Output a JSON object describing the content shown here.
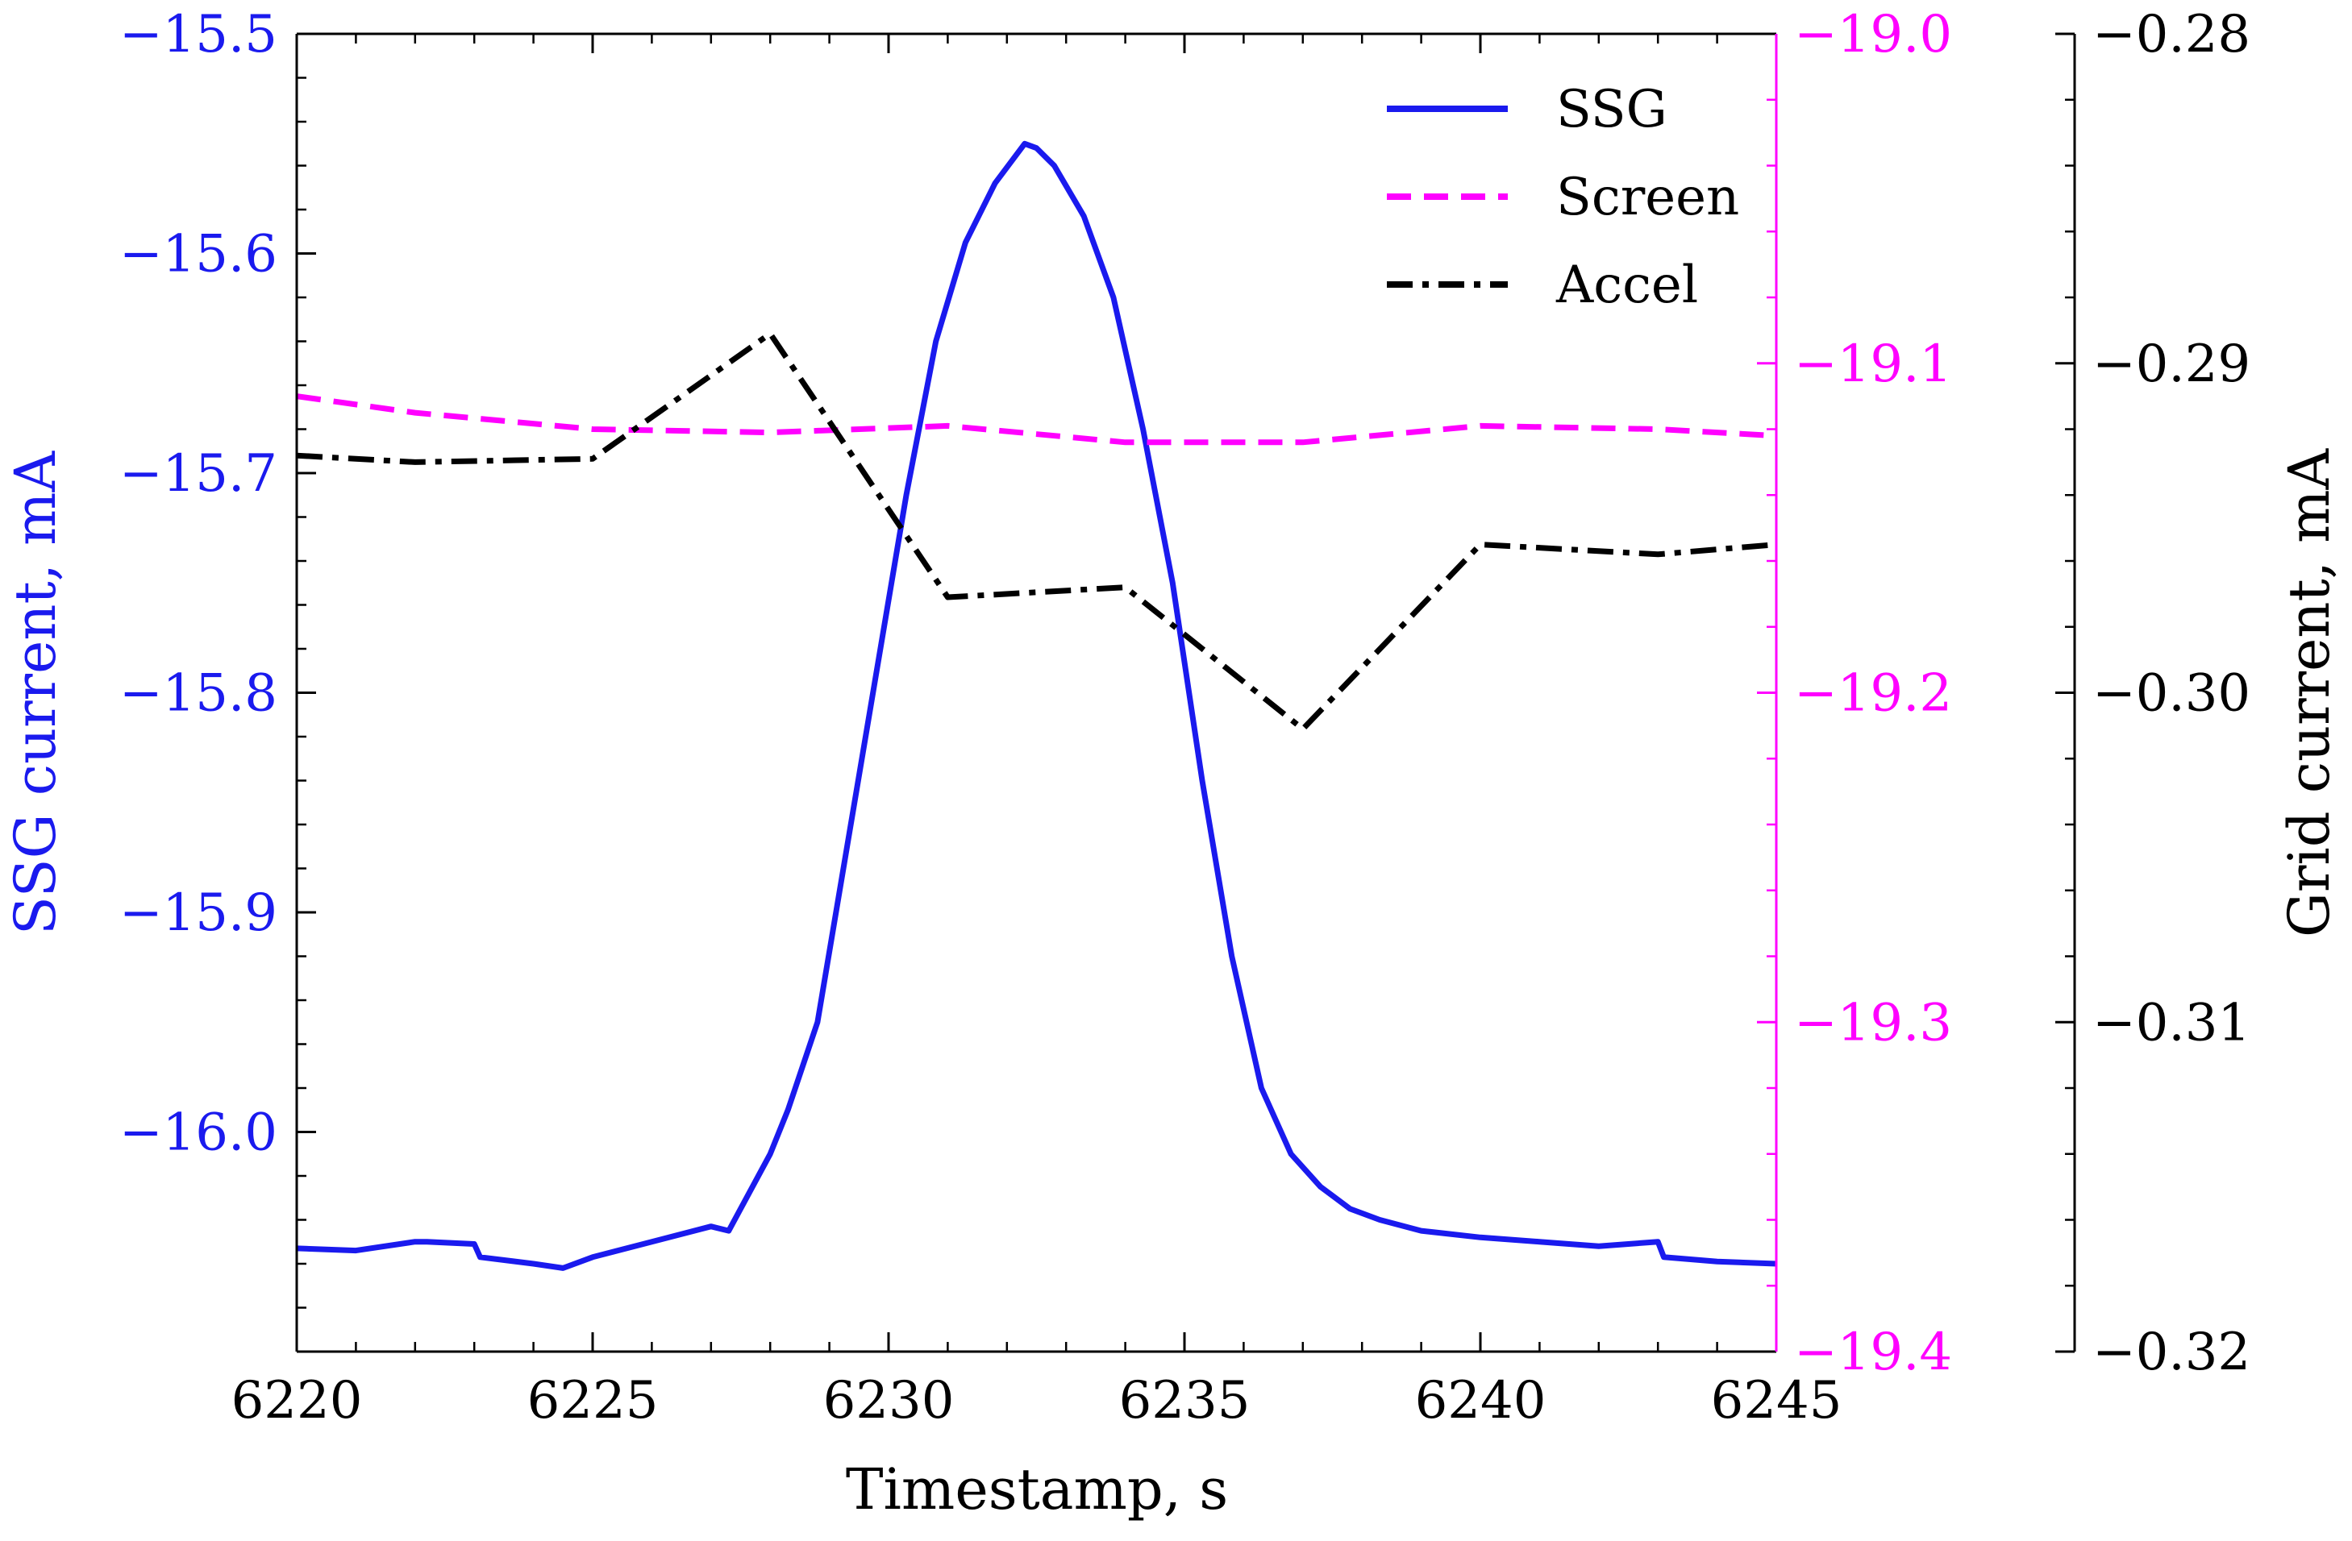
{
  "chart_data": {
    "type": "line",
    "xlabel": "Timestamp, s",
    "xlim": [
      6220,
      6245
    ],
    "xticks": [
      6220,
      6225,
      6230,
      6235,
      6240,
      6245
    ],
    "xtick_labels": [
      "6220",
      "6225",
      "6230",
      "6235",
      "6240",
      "6245"
    ],
    "axes": {
      "left": {
        "label": "SSG current, mA",
        "color": "#1a1aee",
        "ylim": [
          -16.1,
          -15.5
        ],
        "ticks": [
          -15.5,
          -15.6,
          -15.7,
          -15.8,
          -15.9,
          -16.0
        ],
        "tick_labels": [
          "−15.5",
          "−15.6",
          "−15.7",
          "−15.8",
          "−15.9",
          "−16.0"
        ]
      },
      "right_screen": {
        "label": "",
        "color": "#ff00ff",
        "ylim": [
          -19.4,
          -19.0
        ],
        "ticks": [
          -19.0,
          -19.1,
          -19.2,
          -19.3,
          -19.4
        ],
        "tick_labels": [
          "−19.0",
          "−19.1",
          "−19.2",
          "−19.3",
          "−19.4"
        ]
      },
      "right_grid": {
        "label": "Grid current, mA",
        "color": "#000000",
        "ylim": [
          -0.32,
          -0.28
        ],
        "ticks": [
          -0.28,
          -0.29,
          -0.3,
          -0.31,
          -0.32
        ],
        "tick_labels": [
          "−0.28",
          "−0.29",
          "−0.30",
          "−0.31",
          "−0.32"
        ]
      }
    },
    "series": [
      {
        "name": "SSG",
        "axis": "left",
        "color": "#1a1aee",
        "style": "solid",
        "x": [
          6220,
          6221,
          6222,
          6222.2,
          6223,
          6223.1,
          6224,
          6224.5,
          6225,
          6226,
          6227,
          6227.3,
          6228,
          6228.3,
          6228.8,
          6229.3,
          6229.8,
          6230.3,
          6230.8,
          6231.3,
          6231.8,
          6232.3,
          6232.5,
          6232.8,
          6233.3,
          6233.8,
          6234.3,
          6234.8,
          6235.3,
          6235.8,
          6236.3,
          6236.8,
          6237.3,
          6237.8,
          6238.3,
          6239,
          6240,
          6241,
          6242,
          6242.5,
          6243,
          6243.1,
          6244,
          6245
        ],
        "y": [
          -16.053,
          -16.054,
          -16.05,
          -16.05,
          -16.051,
          -16.057,
          -16.06,
          -16.062,
          -16.057,
          -16.05,
          -16.043,
          -16.045,
          -16.01,
          -15.99,
          -15.95,
          -15.87,
          -15.79,
          -15.71,
          -15.64,
          -15.595,
          -15.568,
          -15.55,
          -15.552,
          -15.56,
          -15.583,
          -15.62,
          -15.68,
          -15.75,
          -15.84,
          -15.92,
          -15.98,
          -16.01,
          -16.025,
          -16.035,
          -16.04,
          -16.045,
          -16.048,
          -16.05,
          -16.052,
          -16.051,
          -16.05,
          -16.057,
          -16.059,
          -16.06
        ]
      },
      {
        "name": "Screen",
        "axis": "right_screen",
        "color": "#ff00ff",
        "style": "dashed",
        "x": [
          6220,
          6222,
          6225,
          6228,
          6231,
          6234,
          6237,
          6240,
          6243,
          6245
        ],
        "y": [
          -19.11,
          -19.115,
          -19.12,
          -19.121,
          -19.119,
          -19.124,
          -19.124,
          -19.119,
          -19.12,
          -19.122
        ]
      },
      {
        "name": "Accel",
        "axis": "right_grid",
        "color": "#000000",
        "style": "dashdot",
        "x": [
          6220,
          6222,
          6225,
          6228,
          6231,
          6234,
          6237,
          6240,
          6243,
          6245
        ],
        "y": [
          -0.2928,
          -0.293,
          -0.2929,
          -0.2891,
          -0.2971,
          -0.2968,
          -0.3011,
          -0.2955,
          -0.2958,
          -0.2955
        ]
      }
    ],
    "legend": {
      "position": "top-right",
      "entries": [
        "SSG",
        "Screen",
        "Accel"
      ]
    }
  }
}
